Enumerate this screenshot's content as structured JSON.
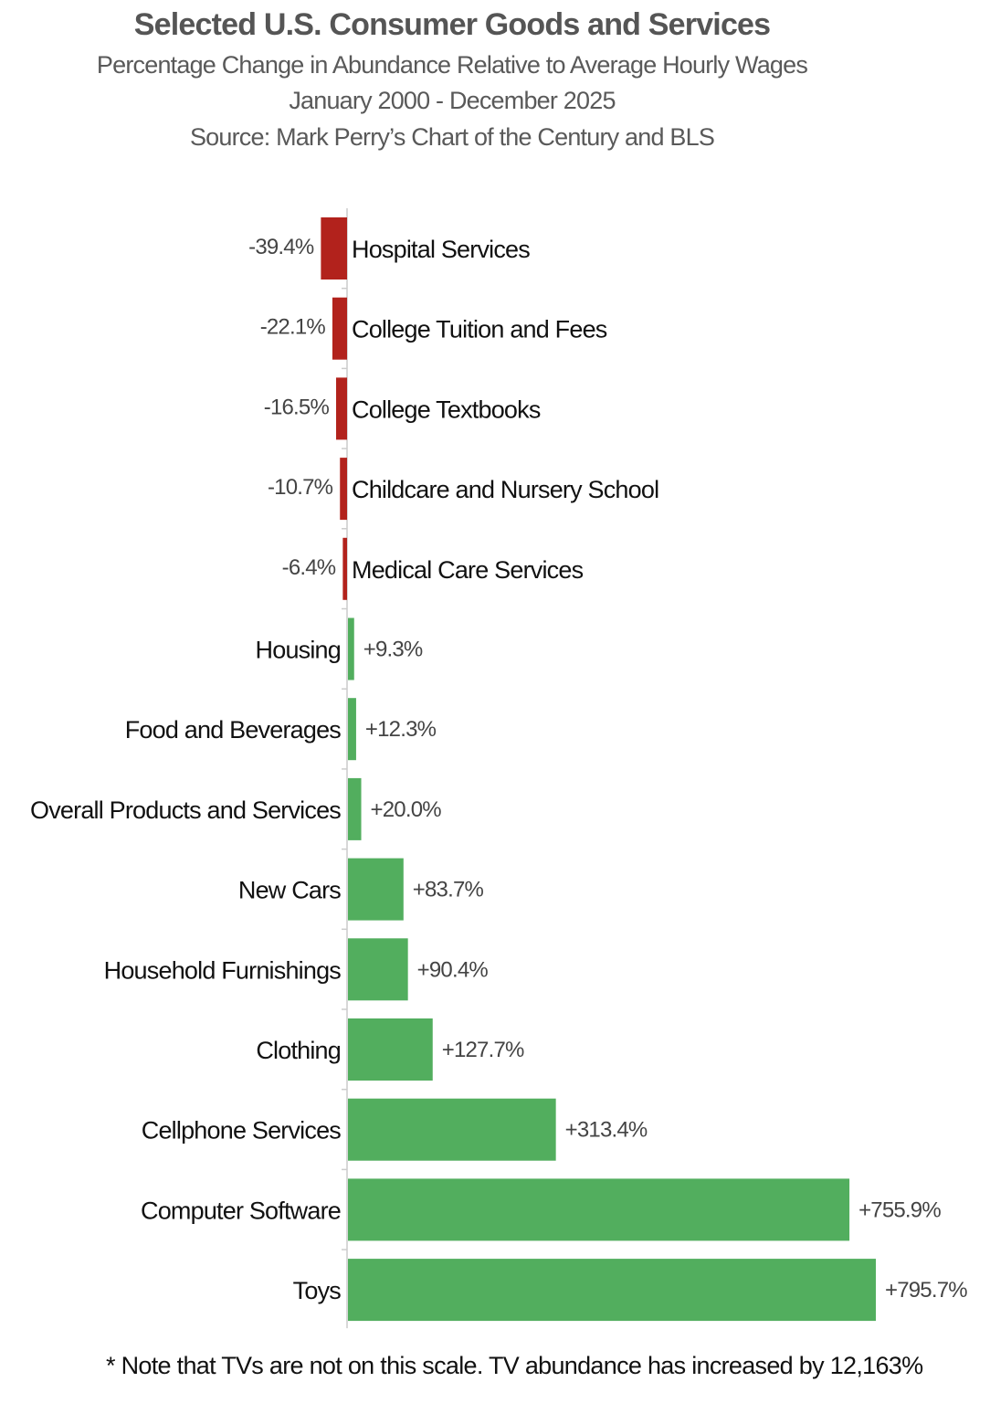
{
  "chart_data": {
    "type": "bar",
    "orientation": "horizontal",
    "title": "Selected U.S. Consumer Goods and Services",
    "subtitle": [
      "Percentage Change in Abundance Relative to Average Hourly Wages",
      "January 2000 - December 2025",
      "Source: Mark Perry’s Chart of the Century and BLS"
    ],
    "xlabel": "",
    "ylabel": "",
    "categories": [
      "Hospital Services",
      "College Tuition and Fees",
      "College Textbooks",
      "Childcare and Nursery School",
      "Medical Care Services",
      "Housing",
      "Food and Beverages",
      "Overall Products and Services",
      "New Cars",
      "Household Furnishings",
      "Clothing",
      "Cellphone Services",
      "Computer Software",
      "Toys"
    ],
    "values": [
      -39.4,
      -22.1,
      -16.5,
      -10.7,
      -6.4,
      9.3,
      12.3,
      20.0,
      83.7,
      90.4,
      127.7,
      313.4,
      755.9,
      795.7
    ],
    "data_labels": [
      "-39.4%",
      "-22.1%",
      "-16.5%",
      "-10.7%",
      "-6.4%",
      "+9.3%",
      "+12.3%",
      "+20.0%",
      "+83.7%",
      "+90.4%",
      "+127.7%",
      "+313.4%",
      "+755.9%",
      "+795.7%"
    ],
    "xlim": [
      -39.4,
      795.7
    ],
    "grid": false,
    "legend": "none",
    "colors": {
      "negative": "#b2221c",
      "positive": "#52ae5e",
      "axis": "#cccccc"
    },
    "note": "* Note that TVs are not on this scale. TV abundance has increased by 12,163%"
  }
}
